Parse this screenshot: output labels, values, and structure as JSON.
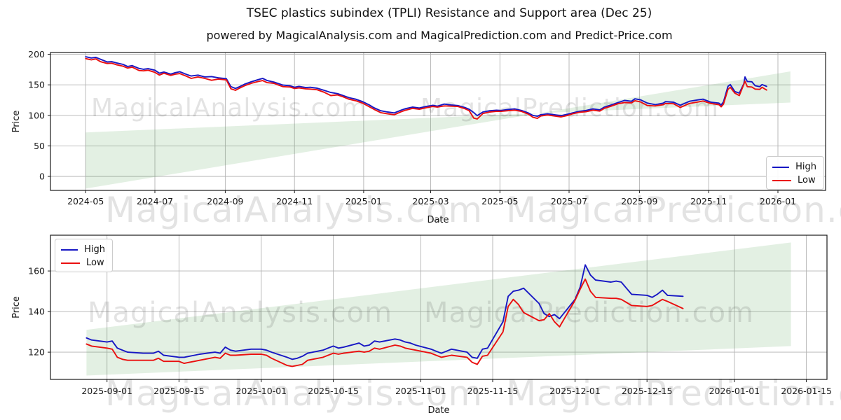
{
  "figure": {
    "title": "TSEC plastics subindex (TPLI) Resistance and Support area (Dec 25)",
    "subtitle": "powered by MagicalAnalysis.com and MagicalPrediction.com and Predict-Price.com",
    "background": "#ffffff"
  },
  "watermarks": {
    "text1": "MagicalAnalysis.com",
    "text2": "MagicalPrediction.com",
    "opacity": 0.11
  },
  "colors": {
    "high_line": "#1717c4",
    "low_line": "#ea0f0f",
    "band_fill": "#5ba85b",
    "band_opacity": 0.17,
    "grid": "#b3b3b3",
    "frame": "#1a1a1a",
    "text": "#1a1a1a"
  },
  "chart_data": [
    {
      "type": "line",
      "name": "full-history",
      "xlabel": "Date",
      "ylabel": "Price",
      "grid": true,
      "legend": {
        "position": "lower-right"
      },
      "xlim": [
        "2024-03-31",
        "2026-02-12"
      ],
      "ylim": [
        -23,
        203
      ],
      "yticks": [
        0,
        50,
        100,
        150,
        200
      ],
      "xticks": [
        {
          "date": "2024-05-01",
          "label": "2024-05"
        },
        {
          "date": "2024-07-01",
          "label": "2024-07"
        },
        {
          "date": "2024-09-01",
          "label": "2024-09"
        },
        {
          "date": "2024-11-01",
          "label": "2024-11"
        },
        {
          "date": "2025-01-01",
          "label": "2025-01"
        },
        {
          "date": "2025-03-01",
          "label": "2025-03"
        },
        {
          "date": "2025-05-01",
          "label": "2025-05"
        },
        {
          "date": "2025-07-01",
          "label": "2025-07"
        },
        {
          "date": "2025-09-01",
          "label": "2025-09"
        },
        {
          "date": "2025-11-01",
          "label": "2025-11"
        },
        {
          "date": "2026-01-01",
          "label": "2026-01"
        }
      ],
      "band": {
        "x": [
          "2024-05-01",
          "2026-01-12"
        ],
        "line_a": [
          -20,
          172
        ],
        "line_b": [
          72,
          121
        ]
      },
      "x": [
        "2024-05-01",
        "2024-05-06",
        "2024-05-10",
        "2024-05-14",
        "2024-05-20",
        "2024-05-24",
        "2024-05-28",
        "2024-06-03",
        "2024-06-07",
        "2024-06-11",
        "2024-06-17",
        "2024-06-21",
        "2024-06-25",
        "2024-07-01",
        "2024-07-05",
        "2024-07-09",
        "2024-07-15",
        "2024-07-19",
        "2024-07-23",
        "2024-07-29",
        "2024-08-02",
        "2024-08-08",
        "2024-08-14",
        "2024-08-20",
        "2024-08-26",
        "2024-09-02",
        "2024-09-06",
        "2024-09-10",
        "2024-09-13",
        "2024-09-18",
        "2024-09-24",
        "2024-09-30",
        "2024-10-04",
        "2024-10-08",
        "2024-10-14",
        "2024-10-18",
        "2024-10-22",
        "2024-10-28",
        "2024-11-01",
        "2024-11-05",
        "2024-11-11",
        "2024-11-15",
        "2024-11-21",
        "2024-11-27",
        "2024-12-03",
        "2024-12-09",
        "2024-12-13",
        "2024-12-19",
        "2024-12-25",
        "2024-12-31",
        "2025-01-06",
        "2025-01-10",
        "2025-01-16",
        "2025-01-22",
        "2025-01-28",
        "2025-02-03",
        "2025-02-07",
        "2025-02-13",
        "2025-02-19",
        "2025-02-25",
        "2025-03-03",
        "2025-03-07",
        "2025-03-13",
        "2025-03-19",
        "2025-03-25",
        "2025-03-31",
        "2025-04-04",
        "2025-04-08",
        "2025-04-11",
        "2025-04-16",
        "2025-04-22",
        "2025-04-28",
        "2025-05-02",
        "2025-05-08",
        "2025-05-14",
        "2025-05-20",
        "2025-05-26",
        "2025-05-30",
        "2025-06-03",
        "2025-06-06",
        "2025-06-12",
        "2025-06-18",
        "2025-06-24",
        "2025-06-30",
        "2025-07-04",
        "2025-07-10",
        "2025-07-16",
        "2025-07-22",
        "2025-07-28",
        "2025-08-01",
        "2025-08-07",
        "2025-08-13",
        "2025-08-19",
        "2025-08-25",
        "2025-08-28",
        "2025-09-02",
        "2025-09-08",
        "2025-09-15",
        "2025-09-22",
        "2025-09-24",
        "2025-10-01",
        "2025-10-07",
        "2025-10-15",
        "2025-10-23",
        "2025-10-27",
        "2025-11-03",
        "2025-11-10",
        "2025-11-12",
        "2025-11-14",
        "2025-11-18",
        "2025-11-20",
        "2025-11-24",
        "2025-11-28",
        "2025-12-02",
        "2025-12-03",
        "2025-12-05",
        "2025-12-09",
        "2025-12-12",
        "2025-12-16",
        "2025-12-18",
        "2025-12-22"
      ],
      "series": [
        {
          "name": "High",
          "color_key": "high_line",
          "values": [
            196,
            194,
            195,
            192,
            187.5,
            188,
            186,
            183.5,
            180,
            181.5,
            177,
            175.5,
            176.5,
            174,
            169,
            171,
            167.5,
            170,
            171.5,
            167,
            164.5,
            166,
            163,
            163.5,
            161.5,
            160,
            147,
            144,
            146.5,
            151,
            155,
            158.5,
            160.5,
            157,
            154.5,
            152,
            149.5,
            148.5,
            146,
            147.5,
            145.5,
            146,
            144.5,
            141,
            137.5,
            135.5,
            133,
            129,
            126.5,
            122.5,
            117,
            112.5,
            107.5,
            105.5,
            104,
            108.5,
            111,
            113.5,
            112,
            114.5,
            116.5,
            115,
            118.5,
            117,
            116,
            113,
            110,
            104.5,
            99.5,
            105.5,
            107.5,
            108.5,
            108,
            109.5,
            110.5,
            108,
            104,
            100,
            98.5,
            101,
            102.5,
            101,
            99.5,
            102,
            104,
            106.5,
            108,
            110.5,
            109,
            113.5,
            117,
            121,
            124.5,
            123,
            127,
            125.5,
            120,
            117.5,
            120,
            122.5,
            121.5,
            116.5,
            123,
            125.5,
            126.5,
            121.5,
            120,
            117,
            122,
            147.5,
            150.5,
            139,
            136.5,
            152,
            163,
            155.5,
            155,
            148.5,
            147,
            150.5,
            147.5
          ]
        },
        {
          "name": "Low",
          "color_key": "low_line",
          "values": [
            193,
            191,
            192.5,
            188,
            185,
            185.5,
            183,
            180.5,
            177.5,
            179,
            173.5,
            173,
            174,
            170.5,
            166,
            169,
            165.5,
            167.5,
            168.5,
            164,
            160.5,
            163,
            160.5,
            157.5,
            159.5,
            158,
            143.5,
            141,
            144,
            148.5,
            152.5,
            155.5,
            157,
            153.5,
            152.5,
            149.5,
            147,
            146.5,
            144,
            145,
            143.5,
            143,
            142,
            138,
            132.5,
            133.5,
            131,
            126.5,
            124,
            120,
            114,
            110,
            104.5,
            102.5,
            101,
            106,
            108.5,
            111.5,
            110,
            112.5,
            114.5,
            113.5,
            115.5,
            115,
            114.5,
            111,
            107.5,
            95.5,
            94,
            103,
            105.5,
            106.5,
            106.5,
            107.5,
            108.5,
            106.5,
            102,
            97,
            95,
            99,
            100.5,
            99,
            97.5,
            100,
            102.5,
            105,
            106,
            108.5,
            107,
            111.5,
            115,
            119,
            121,
            120.5,
            124,
            122,
            116,
            115.5,
            117.5,
            119.5,
            119,
            113,
            119.5,
            122,
            123.5,
            119.5,
            117.5,
            114,
            118.5,
            142.5,
            146,
            136.5,
            132.5,
            151,
            156,
            147,
            146.5,
            143,
            142.5,
            146,
            141.5
          ]
        }
      ]
    },
    {
      "type": "line",
      "name": "recent-detail",
      "xlabel": "Date",
      "ylabel": "Price",
      "grid": true,
      "legend": {
        "position": "upper-left"
      },
      "xlim": [
        "2025-08-21",
        "2026-01-19"
      ],
      "ylim": [
        106.6,
        177.6
      ],
      "yticks": [
        120,
        140,
        160
      ],
      "xticks": [
        {
          "date": "2025-09-01",
          "label": "2025-09-01"
        },
        {
          "date": "2025-09-15",
          "label": "2025-09-15"
        },
        {
          "date": "2025-10-01",
          "label": "2025-10-01"
        },
        {
          "date": "2025-10-15",
          "label": "2025-10-15"
        },
        {
          "date": "2025-11-01",
          "label": "2025-11-01"
        },
        {
          "date": "2025-11-15",
          "label": "2025-11-15"
        },
        {
          "date": "2025-12-01",
          "label": "2025-12-01"
        },
        {
          "date": "2025-12-15",
          "label": "2025-12-15"
        },
        {
          "date": "2026-01-01",
          "label": "2026-01-01"
        },
        {
          "date": "2026-01-15",
          "label": "2026-01-15"
        }
      ],
      "band": {
        "x": [
          "2025-08-28",
          "2026-01-12"
        ],
        "line_a": [
          131,
          174
        ],
        "line_b": [
          108.5,
          123
        ]
      },
      "x": [
        "2025-08-28",
        "2025-08-29",
        "2025-09-01",
        "2025-09-02",
        "2025-09-03",
        "2025-09-04",
        "2025-09-05",
        "2025-09-08",
        "2025-09-09",
        "2025-09-10",
        "2025-09-11",
        "2025-09-12",
        "2025-09-15",
        "2025-09-16",
        "2025-09-17",
        "2025-09-18",
        "2025-09-19",
        "2025-09-22",
        "2025-09-23",
        "2025-09-24",
        "2025-09-25",
        "2025-09-26",
        "2025-09-29",
        "2025-09-30",
        "2025-10-01",
        "2025-10-02",
        "2025-10-03",
        "2025-10-06",
        "2025-10-07",
        "2025-10-08",
        "2025-10-09",
        "2025-10-10",
        "2025-10-13",
        "2025-10-14",
        "2025-10-15",
        "2025-10-16",
        "2025-10-17",
        "2025-10-20",
        "2025-10-21",
        "2025-10-22",
        "2025-10-23",
        "2025-10-24",
        "2025-10-27",
        "2025-10-28",
        "2025-10-29",
        "2025-10-30",
        "2025-10-31",
        "2025-11-03",
        "2025-11-04",
        "2025-11-05",
        "2025-11-06",
        "2025-11-07",
        "2025-11-10",
        "2025-11-11",
        "2025-11-12",
        "2025-11-13",
        "2025-11-14",
        "2025-11-17",
        "2025-11-18",
        "2025-11-19",
        "2025-11-20",
        "2025-11-21",
        "2025-11-24",
        "2025-11-25",
        "2025-11-26",
        "2025-11-27",
        "2025-11-28",
        "2025-12-01",
        "2025-12-02",
        "2025-12-03",
        "2025-12-04",
        "2025-12-05",
        "2025-12-08",
        "2025-12-09",
        "2025-12-10",
        "2025-12-11",
        "2025-12-12",
        "2025-12-15",
        "2025-12-16",
        "2025-12-17",
        "2025-12-18",
        "2025-12-19",
        "2025-12-22"
      ],
      "series": [
        {
          "name": "High",
          "color_key": "high_line",
          "values": [
            127,
            126,
            125,
            125.5,
            122,
            121,
            120,
            119.5,
            119.5,
            119.5,
            120.5,
            118.5,
            117.5,
            117.5,
            118,
            118.5,
            119,
            120,
            119.5,
            122.5,
            121,
            120.5,
            121.5,
            121.5,
            121.5,
            121,
            120,
            117.5,
            116.5,
            117,
            118,
            119.5,
            121,
            122,
            123,
            122,
            122.5,
            124.5,
            123,
            123.5,
            125.5,
            125,
            126.5,
            126,
            125,
            124.5,
            123.5,
            121.5,
            120.5,
            119.5,
            120.5,
            121.5,
            120,
            117.5,
            117,
            121.5,
            122,
            135,
            147.5,
            150,
            150.5,
            151.5,
            144,
            139,
            137.5,
            138.5,
            136.5,
            146,
            152,
            163,
            158,
            155.5,
            154.5,
            155,
            154.5,
            151.5,
            148.5,
            148,
            147,
            148.5,
            150.5,
            148,
            147.5
          ]
        },
        {
          "name": "Low",
          "color_key": "low_line",
          "values": [
            124,
            123,
            122,
            121.5,
            117.5,
            116.5,
            116,
            116,
            116,
            116,
            117,
            115.5,
            115.5,
            114.5,
            115,
            115.5,
            116,
            117.5,
            117,
            119.5,
            118.5,
            118.5,
            119,
            119,
            119,
            118.5,
            117,
            113.5,
            113,
            113.5,
            114,
            116,
            117.5,
            118.5,
            119.5,
            119,
            119.5,
            120.5,
            120,
            120.5,
            122,
            121.5,
            123.5,
            123,
            122,
            121.5,
            121,
            119.5,
            118.5,
            117.5,
            118,
            118.5,
            117.5,
            115,
            114,
            118,
            118.5,
            130,
            142.5,
            146,
            143.5,
            139.5,
            135.5,
            136,
            139,
            135,
            132.5,
            145.5,
            151,
            156,
            150,
            147,
            146.5,
            146.5,
            146,
            144.5,
            143,
            142.5,
            143,
            144.5,
            146,
            145,
            141.5
          ]
        }
      ]
    }
  ]
}
